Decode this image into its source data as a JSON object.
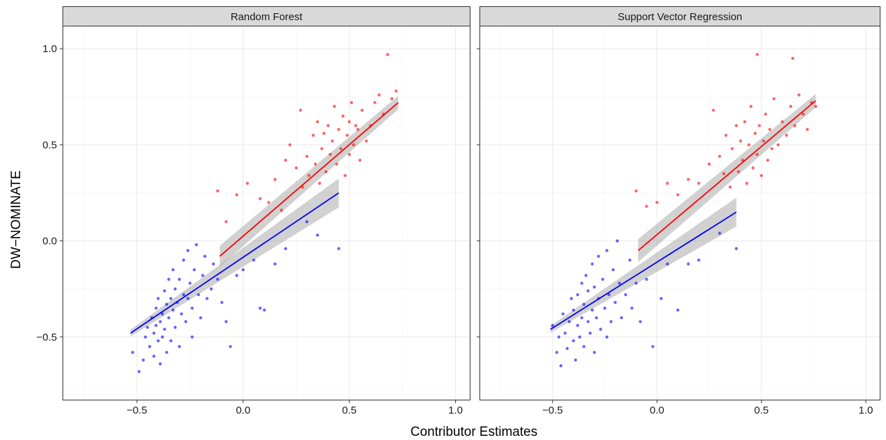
{
  "chart_data": {
    "type": "scatter",
    "xlabel": "Contributor Estimates",
    "ylabel": "DW−NOMINATE",
    "xlim": [
      -0.85,
      1.07
    ],
    "ylim": [
      -0.83,
      1.12
    ],
    "x_ticks": [
      -0.5,
      0.0,
      0.5,
      1.0
    ],
    "x_tick_labels": [
      "−0.5",
      "0.0",
      "0.5",
      "1.0"
    ],
    "y_ticks": [
      -0.5,
      0.0,
      0.5,
      1.0
    ],
    "y_tick_labels": [
      "−0.5",
      "0.0",
      "0.5",
      "1.0"
    ],
    "grid": true,
    "colors": {
      "blue_group": "#0000ff",
      "red_group": "#ff0000",
      "confidence_band": "#999999",
      "strip_background": "#d9d9d9"
    },
    "panels": [
      {
        "title": "Random Forest",
        "series": [
          {
            "color": "#0000ff",
            "points": [
              [
                -0.52,
                -0.58
              ],
              [
                -0.49,
                -0.68
              ],
              [
                -0.47,
                -0.62
              ],
              [
                -0.46,
                -0.5
              ],
              [
                -0.45,
                -0.45
              ],
              [
                -0.44,
                -0.55
              ],
              [
                -0.43,
                -0.4
              ],
              [
                -0.42,
                -0.48
              ],
              [
                -0.42,
                -0.6
              ],
              [
                -0.41,
                -0.35
              ],
              [
                -0.41,
                -0.44
              ],
              [
                -0.4,
                -0.52
              ],
              [
                -0.4,
                -0.3
              ],
              [
                -0.39,
                -0.42
              ],
              [
                -0.39,
                -0.64
              ],
              [
                -0.38,
                -0.38
              ],
              [
                -0.38,
                -0.5
              ],
              [
                -0.37,
                -0.26
              ],
              [
                -0.37,
                -0.46
              ],
              [
                -0.36,
                -0.33
              ],
              [
                -0.36,
                -0.58
              ],
              [
                -0.35,
                -0.2
              ],
              [
                -0.35,
                -0.4
              ],
              [
                -0.34,
                -0.3
              ],
              [
                -0.34,
                -0.52
              ],
              [
                -0.33,
                -0.15
              ],
              [
                -0.33,
                -0.36
              ],
              [
                -0.32,
                -0.25
              ],
              [
                -0.32,
                -0.45
              ],
              [
                -0.31,
                -0.32
              ],
              [
                -0.3,
                -0.2
              ],
              [
                -0.3,
                -0.55
              ],
              [
                -0.29,
                -0.38
              ],
              [
                -0.28,
                -0.28
              ],
              [
                -0.28,
                -0.1
              ],
              [
                -0.27,
                -0.42
              ],
              [
                -0.26,
                -0.05
              ],
              [
                -0.26,
                -0.3
              ],
              [
                -0.25,
                -0.22
              ],
              [
                -0.24,
                -0.5
              ],
              [
                -0.24,
                -0.35
              ],
              [
                -0.23,
                -0.15
              ],
              [
                -0.22,
                -0.02
              ],
              [
                -0.21,
                -0.28
              ],
              [
                -0.2,
                -0.4
              ],
              [
                -0.19,
                -0.18
              ],
              [
                -0.18,
                -0.08
              ],
              [
                -0.17,
                -0.3
              ],
              [
                -0.15,
                -0.25
              ],
              [
                -0.14,
                -0.12
              ],
              [
                -0.12,
                -0.2
              ],
              [
                -0.1,
                -0.32
              ],
              [
                -0.08,
                -0.42
              ],
              [
                -0.06,
                -0.55
              ],
              [
                -0.03,
                -0.18
              ],
              [
                0.0,
                -0.15
              ],
              [
                0.05,
                -0.1
              ],
              [
                0.08,
                -0.35
              ],
              [
                0.1,
                -0.36
              ],
              [
                0.15,
                -0.12
              ],
              [
                0.2,
                -0.04
              ],
              [
                0.3,
                0.1
              ],
              [
                0.35,
                0.03
              ],
              [
                0.45,
                -0.04
              ]
            ]
          },
          {
            "color": "#ff0000",
            "points": [
              [
                -0.12,
                0.26
              ],
              [
                -0.08,
                0.1
              ],
              [
                -0.03,
                0.24
              ],
              [
                0.02,
                0.3
              ],
              [
                0.08,
                0.22
              ],
              [
                0.12,
                0.2
              ],
              [
                0.15,
                0.32
              ],
              [
                0.18,
                0.16
              ],
              [
                0.2,
                0.42
              ],
              [
                0.22,
                0.5
              ],
              [
                0.25,
                0.38
              ],
              [
                0.27,
                0.68
              ],
              [
                0.28,
                0.28
              ],
              [
                0.3,
                0.44
              ],
              [
                0.31,
                0.34
              ],
              [
                0.33,
                0.55
              ],
              [
                0.34,
                0.4
              ],
              [
                0.35,
                0.62
              ],
              [
                0.36,
                0.3
              ],
              [
                0.37,
                0.48
              ],
              [
                0.38,
                0.56
              ],
              [
                0.39,
                0.36
              ],
              [
                0.4,
                0.6
              ],
              [
                0.41,
                0.45
              ],
              [
                0.42,
                0.52
              ],
              [
                0.43,
                0.7
              ],
              [
                0.44,
                0.4
              ],
              [
                0.45,
                0.58
              ],
              [
                0.46,
                0.48
              ],
              [
                0.47,
                0.65
              ],
              [
                0.48,
                0.34
              ],
              [
                0.49,
                0.55
              ],
              [
                0.5,
                0.62
              ],
              [
                0.5,
                0.45
              ],
              [
                0.51,
                0.72
              ],
              [
                0.52,
                0.5
              ],
              [
                0.53,
                0.6
              ],
              [
                0.54,
                0.58
              ],
              [
                0.55,
                0.42
              ],
              [
                0.56,
                0.68
              ],
              [
                0.58,
                0.52
              ],
              [
                0.6,
                0.6
              ],
              [
                0.62,
                0.72
              ],
              [
                0.64,
                0.76
              ],
              [
                0.66,
                0.66
              ],
              [
                0.68,
                0.97
              ],
              [
                0.7,
                0.74
              ],
              [
                0.72,
                0.78
              ]
            ]
          }
        ],
        "fits": [
          {
            "color": "#0000ff",
            "x": [
              -0.53,
              0.45
            ],
            "y": [
              -0.48,
              0.25
            ],
            "se": [
              0.018,
              0.075
            ]
          },
          {
            "color": "#ff0000",
            "x": [
              -0.11,
              0.73
            ],
            "y": [
              -0.08,
              0.72
            ],
            "se": [
              0.055,
              0.035
            ]
          }
        ]
      },
      {
        "title": "Support Vector Regression",
        "series": [
          {
            "color": "#0000ff",
            "points": [
              [
                -0.5,
                -0.44
              ],
              [
                -0.48,
                -0.58
              ],
              [
                -0.47,
                -0.5
              ],
              [
                -0.46,
                -0.65
              ],
              [
                -0.45,
                -0.38
              ],
              [
                -0.44,
                -0.48
              ],
              [
                -0.43,
                -0.56
              ],
              [
                -0.42,
                -0.42
              ],
              [
                -0.41,
                -0.3
              ],
              [
                -0.4,
                -0.52
              ],
              [
                -0.4,
                -0.36
              ],
              [
                -0.39,
                -0.62
              ],
              [
                -0.38,
                -0.44
              ],
              [
                -0.38,
                -0.28
              ],
              [
                -0.37,
                -0.5
              ],
              [
                -0.36,
                -0.22
              ],
              [
                -0.36,
                -0.4
              ],
              [
                -0.35,
                -0.33
              ],
              [
                -0.35,
                -0.55
              ],
              [
                -0.34,
                -0.18
              ],
              [
                -0.33,
                -0.42
              ],
              [
                -0.33,
                -0.26
              ],
              [
                -0.32,
                -0.48
              ],
              [
                -0.31,
                -0.12
              ],
              [
                -0.31,
                -0.36
              ],
              [
                -0.3,
                -0.24
              ],
              [
                -0.3,
                -0.58
              ],
              [
                -0.29,
                -0.4
              ],
              [
                -0.28,
                -0.08
              ],
              [
                -0.28,
                -0.3
              ],
              [
                -0.27,
                -0.46
              ],
              [
                -0.26,
                -0.2
              ],
              [
                -0.25,
                -0.35
              ],
              [
                -0.24,
                -0.05
              ],
              [
                -0.24,
                -0.5
              ],
              [
                -0.23,
                -0.28
              ],
              [
                -0.22,
                -0.42
              ],
              [
                -0.21,
                -0.15
              ],
              [
                -0.2,
                -0.32
              ],
              [
                -0.19,
                0.0
              ],
              [
                -0.18,
                -0.22
              ],
              [
                -0.17,
                -0.4
              ],
              [
                -0.15,
                -0.28
              ],
              [
                -0.13,
                -0.1
              ],
              [
                -0.12,
                -0.35
              ],
              [
                -0.1,
                -0.22
              ],
              [
                -0.08,
                -0.42
              ],
              [
                -0.05,
                -0.2
              ],
              [
                -0.02,
                -0.55
              ],
              [
                0.02,
                -0.3
              ],
              [
                0.05,
                -0.12
              ],
              [
                0.1,
                -0.36
              ],
              [
                0.15,
                -0.12
              ],
              [
                0.2,
                -0.1
              ],
              [
                0.3,
                0.04
              ],
              [
                0.38,
                -0.04
              ]
            ]
          },
          {
            "color": "#ff0000",
            "points": [
              [
                -0.1,
                0.26
              ],
              [
                -0.05,
                0.18
              ],
              [
                0.0,
                0.2
              ],
              [
                0.05,
                0.3
              ],
              [
                0.1,
                0.24
              ],
              [
                0.15,
                0.32
              ],
              [
                0.2,
                0.3
              ],
              [
                0.25,
                0.4
              ],
              [
                0.27,
                0.68
              ],
              [
                0.3,
                0.44
              ],
              [
                0.32,
                0.35
              ],
              [
                0.33,
                0.55
              ],
              [
                0.35,
                0.28
              ],
              [
                0.36,
                0.48
              ],
              [
                0.38,
                0.6
              ],
              [
                0.39,
                0.36
              ],
              [
                0.4,
                0.52
              ],
              [
                0.41,
                0.42
              ],
              [
                0.42,
                0.62
              ],
              [
                0.43,
                0.3
              ],
              [
                0.44,
                0.5
              ],
              [
                0.45,
                0.7
              ],
              [
                0.46,
                0.38
              ],
              [
                0.47,
                0.56
              ],
              [
                0.48,
                0.45
              ],
              [
                0.48,
                0.97
              ],
              [
                0.49,
                0.6
              ],
              [
                0.5,
                0.34
              ],
              [
                0.51,
                0.52
              ],
              [
                0.52,
                0.66
              ],
              [
                0.53,
                0.42
              ],
              [
                0.54,
                0.58
              ],
              [
                0.55,
                0.48
              ],
              [
                0.56,
                0.74
              ],
              [
                0.58,
                0.5
              ],
              [
                0.6,
                0.62
              ],
              [
                0.62,
                0.55
              ],
              [
                0.64,
                0.7
              ],
              [
                0.65,
                0.95
              ],
              [
                0.66,
                0.6
              ],
              [
                0.68,
                0.76
              ],
              [
                0.7,
                0.66
              ],
              [
                0.72,
                0.58
              ],
              [
                0.74,
                0.72
              ],
              [
                0.76,
                0.7
              ]
            ]
          }
        ],
        "fits": [
          {
            "color": "#0000ff",
            "x": [
              -0.51,
              0.38
            ],
            "y": [
              -0.46,
              0.15
            ],
            "se": [
              0.018,
              0.075
            ]
          },
          {
            "color": "#ff0000",
            "x": [
              -0.09,
              0.76
            ],
            "y": [
              -0.05,
              0.73
            ],
            "se": [
              0.06,
              0.035
            ]
          }
        ]
      }
    ]
  }
}
